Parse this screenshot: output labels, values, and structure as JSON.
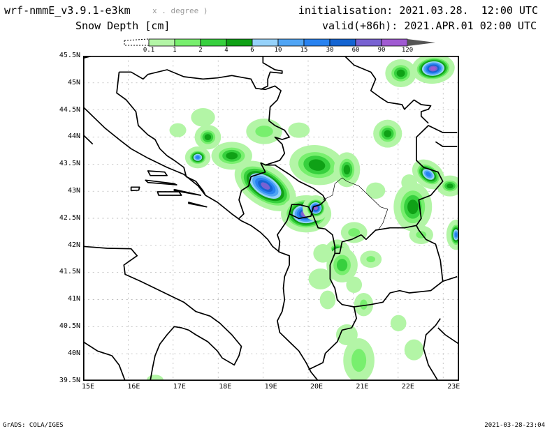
{
  "header": {
    "model": "wrf-nmmE_v3.9.1-e3km",
    "units_ghost": "x . degree )",
    "variable": "Snow Depth [cm]",
    "initialisation": "initialisation: 2021.03.28.  12:00 UTC",
    "valid": "valid(+86h): 2021.APR.01 02:00 UTC"
  },
  "colorbar": {
    "labels": [
      "0.1",
      "1",
      "2",
      "4",
      "6",
      "10",
      "15",
      "30",
      "60",
      "90",
      "120"
    ],
    "colors": [
      "#b3f5a6",
      "#78ef6e",
      "#37d03e",
      "#0fa116",
      "#96d2fa",
      "#50a5f5",
      "#2882f0",
      "#1464d2",
      "#7862d2",
      "#a05ad2"
    ],
    "overflow_color": "#555555"
  },
  "axes": {
    "lat_labels": [
      "45.5N",
      "45N",
      "44.5N",
      "44N",
      "43.5N",
      "43N",
      "42.5N",
      "42N",
      "41.5N",
      "41N",
      "40.5N",
      "40N",
      "39.5N"
    ],
    "lon_labels": [
      "15E",
      "16E",
      "17E",
      "18E",
      "19E",
      "20E",
      "21E",
      "22E",
      "23E"
    ]
  },
  "footer": {
    "left": "GrADS: COLA/IGES",
    "right": "2021-03-28-23:04"
  }
}
